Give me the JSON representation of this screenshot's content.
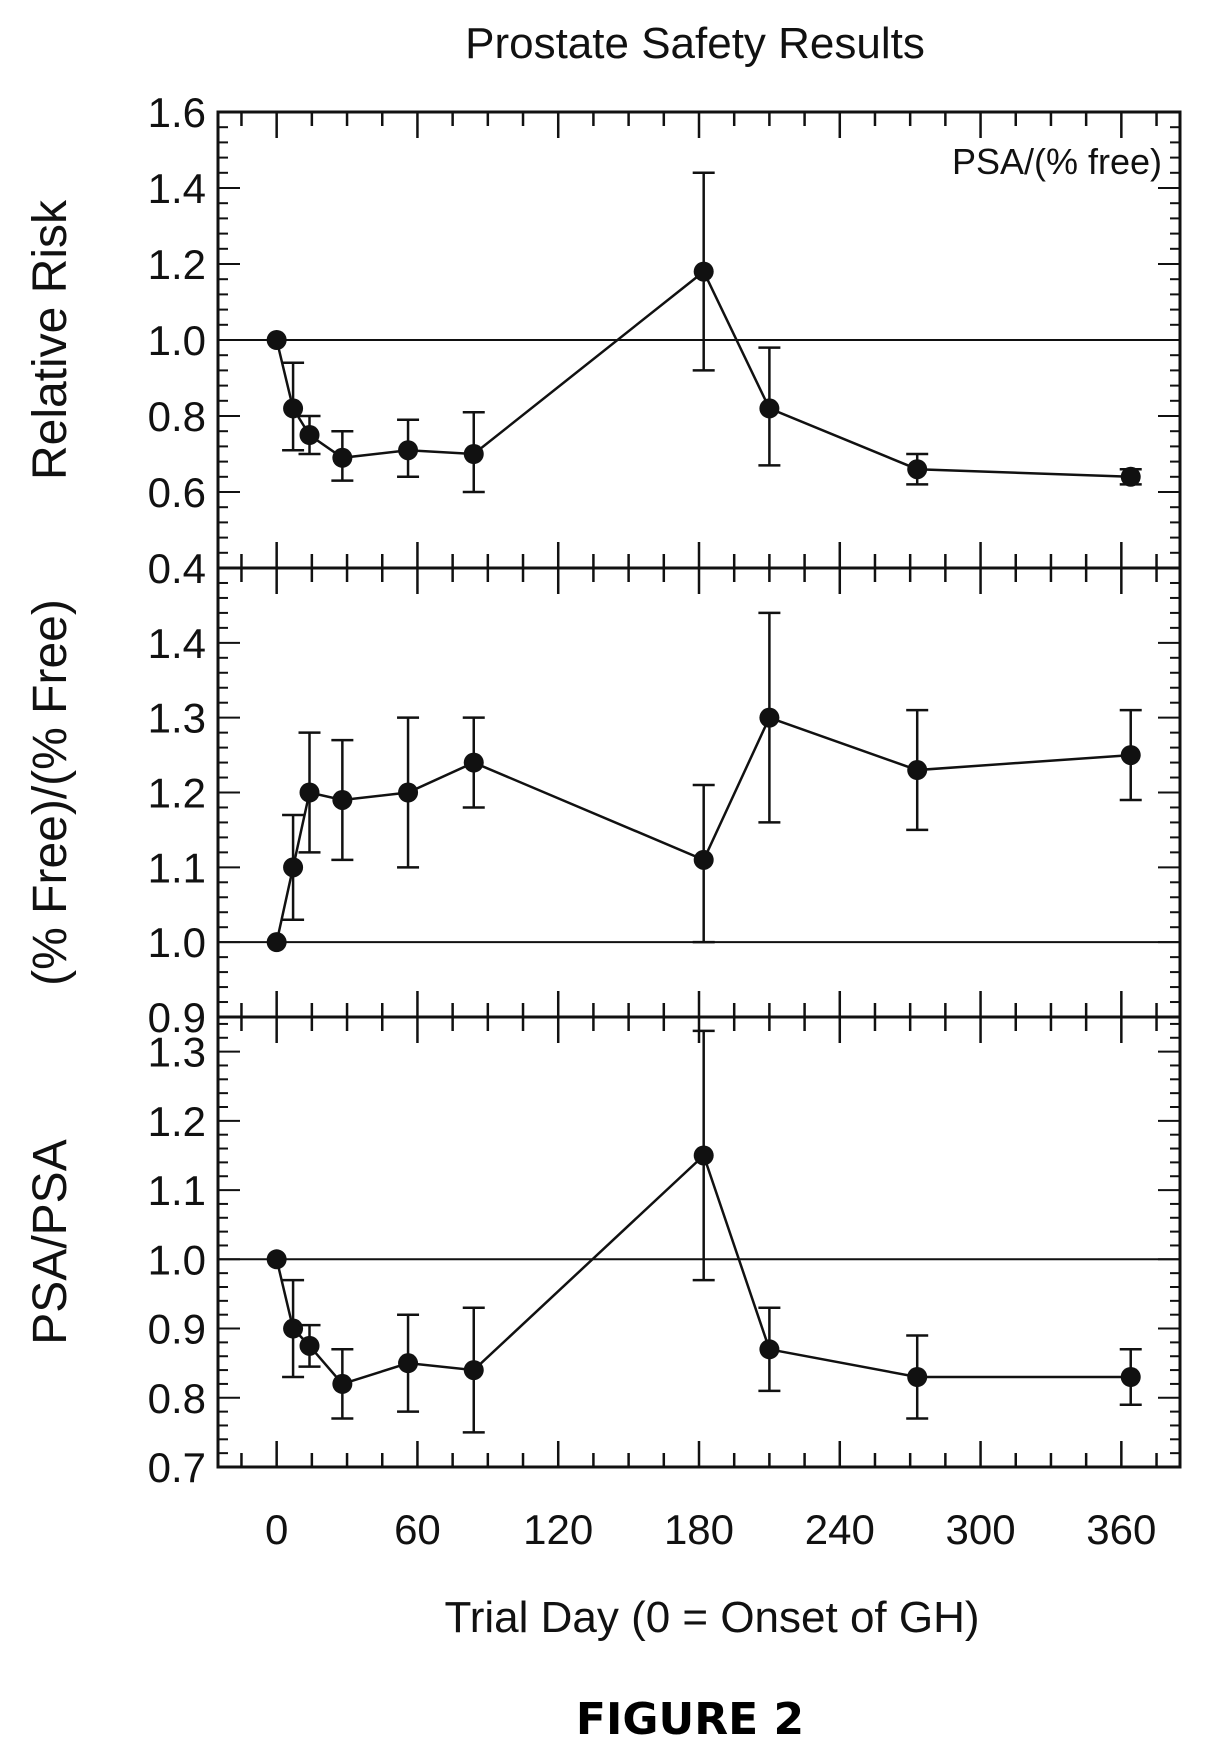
{
  "figure_caption": "FIGURE 2",
  "chart_data": {
    "type": "line",
    "title": "Prostate Safety Results",
    "xlabel": "Trial Day (0 = Onset of GH)",
    "x_ticks": [
      0,
      60,
      120,
      180,
      240,
      300,
      360
    ],
    "x_tick_labels": [
      "0",
      "60",
      "120",
      "180",
      "240",
      "300",
      "360"
    ],
    "xlim": [
      -25,
      385
    ],
    "panels": [
      {
        "ylabel": "Relative Risk",
        "annotation": "PSA/(% free)",
        "ylim": [
          0.4,
          1.6
        ],
        "y_ticks": [
          0.4,
          0.6,
          0.8,
          1.0,
          1.2,
          1.4,
          1.6
        ],
        "y_tick_labels": [
          "0.4",
          "0.6",
          "0.8",
          "1.0",
          "1.2",
          "1.4",
          "1.6"
        ],
        "reference_line": 1.0,
        "series": [
          {
            "x": [
              0,
              7,
              14,
              28,
              56,
              84,
              182,
              210,
              273,
              364
            ],
            "y": [
              1.0,
              0.82,
              0.75,
              0.69,
              0.71,
              0.7,
              1.18,
              0.82,
              0.66,
              0.64
            ],
            "err_low": [
              0.0,
              0.11,
              0.05,
              0.06,
              0.07,
              0.1,
              0.26,
              0.15,
              0.04,
              0.02
            ],
            "err_high": [
              0.0,
              0.12,
              0.05,
              0.07,
              0.08,
              0.11,
              0.26,
              0.16,
              0.04,
              0.02
            ]
          }
        ]
      },
      {
        "ylabel": "(% Free)/(% Free)",
        "ylim": [
          0.9,
          1.5
        ],
        "y_ticks": [
          0.9,
          1.0,
          1.1,
          1.2,
          1.3,
          1.4
        ],
        "y_tick_labels": [
          "0.9",
          "1.0",
          "1.1",
          "1.2",
          "1.3",
          "1.4"
        ],
        "reference_line": 1.0,
        "series": [
          {
            "x": [
              0,
              7,
              14,
              28,
              56,
              84,
              182,
              210,
              273,
              364
            ],
            "y": [
              1.0,
              1.1,
              1.2,
              1.19,
              1.2,
              1.24,
              1.11,
              1.3,
              1.23,
              1.25
            ],
            "err_low": [
              0.0,
              0.07,
              0.08,
              0.08,
              0.1,
              0.06,
              0.11,
              0.14,
              0.08,
              0.06
            ],
            "err_high": [
              0.0,
              0.07,
              0.08,
              0.08,
              0.1,
              0.06,
              0.1,
              0.14,
              0.08,
              0.06
            ]
          }
        ]
      },
      {
        "ylabel": "PSA/PSA",
        "ylim": [
          0.7,
          1.35
        ],
        "y_ticks": [
          0.7,
          0.8,
          0.9,
          1.0,
          1.1,
          1.2,
          1.3
        ],
        "y_tick_labels": [
          "0.7",
          "0.8",
          "0.9",
          "1.0",
          "1.1",
          "1.2",
          "1.3"
        ],
        "reference_line": 1.0,
        "series": [
          {
            "x": [
              0,
              7,
              14,
              28,
              56,
              84,
              182,
              210,
              273,
              364
            ],
            "y": [
              1.0,
              0.9,
              0.875,
              0.82,
              0.85,
              0.84,
              1.15,
              0.87,
              0.83,
              0.83
            ],
            "err_low": [
              0.0,
              0.07,
              0.03,
              0.05,
              0.07,
              0.09,
              0.18,
              0.06,
              0.06,
              0.04
            ],
            "err_high": [
              0.0,
              0.07,
              0.03,
              0.05,
              0.07,
              0.09,
              0.18,
              0.06,
              0.06,
              0.04
            ]
          }
        ]
      }
    ]
  }
}
